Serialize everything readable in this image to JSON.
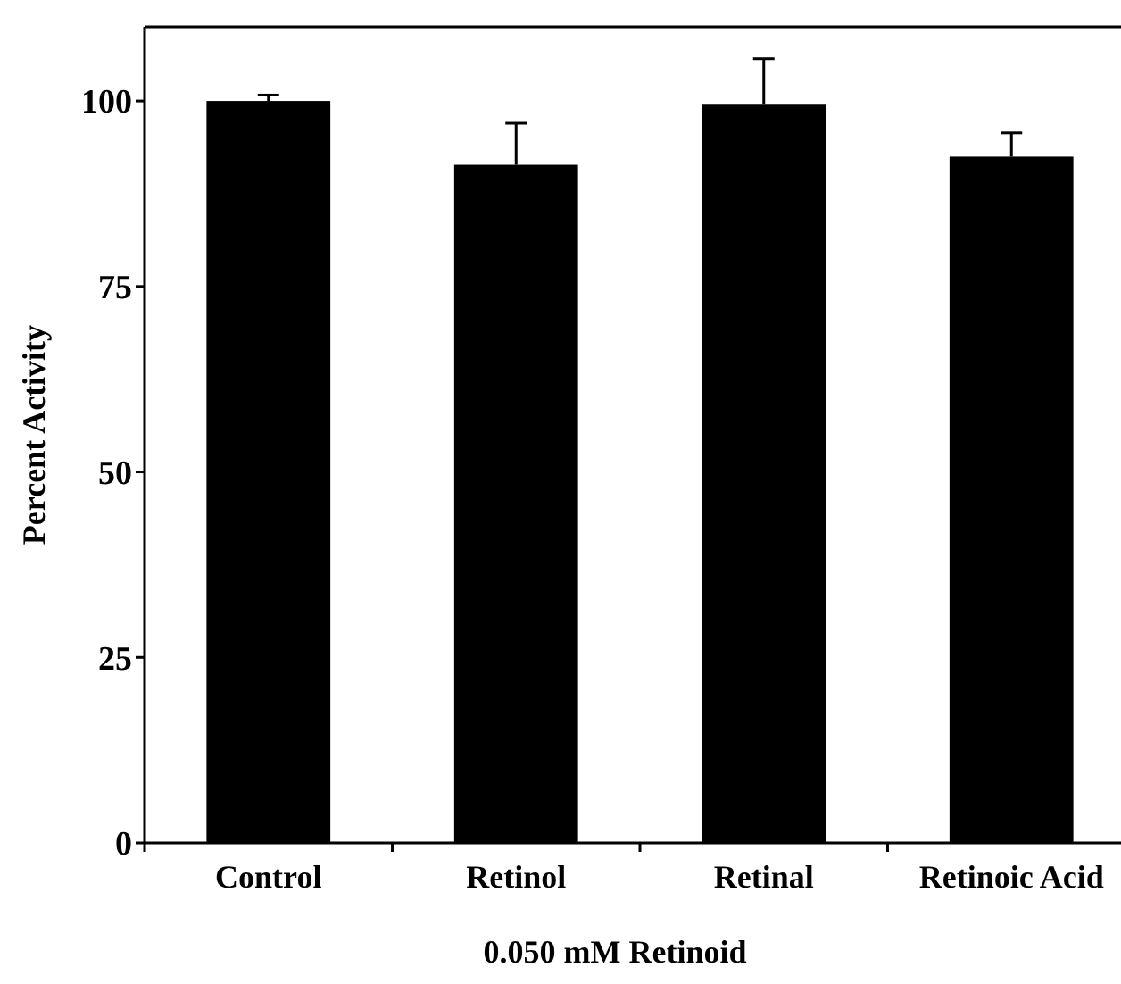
{
  "chart_data": {
    "type": "bar",
    "xlabel": "0.050 mM Retinoid",
    "ylabel": "Percent Activity",
    "categories": [
      "Control",
      "Retinol",
      "Retinal",
      "Retinoic Acid"
    ],
    "values": [
      100,
      91.4,
      99.5,
      92.5
    ],
    "errors": [
      [
        100,
        100.8
      ],
      [
        91.4,
        97.0
      ],
      [
        99.5,
        105.7
      ],
      [
        92.5,
        95.7
      ]
    ],
    "color": "#000000",
    "ylim": [
      0,
      110
    ],
    "yticks": [
      0,
      25,
      50,
      75,
      100
    ],
    "grid": false
  }
}
